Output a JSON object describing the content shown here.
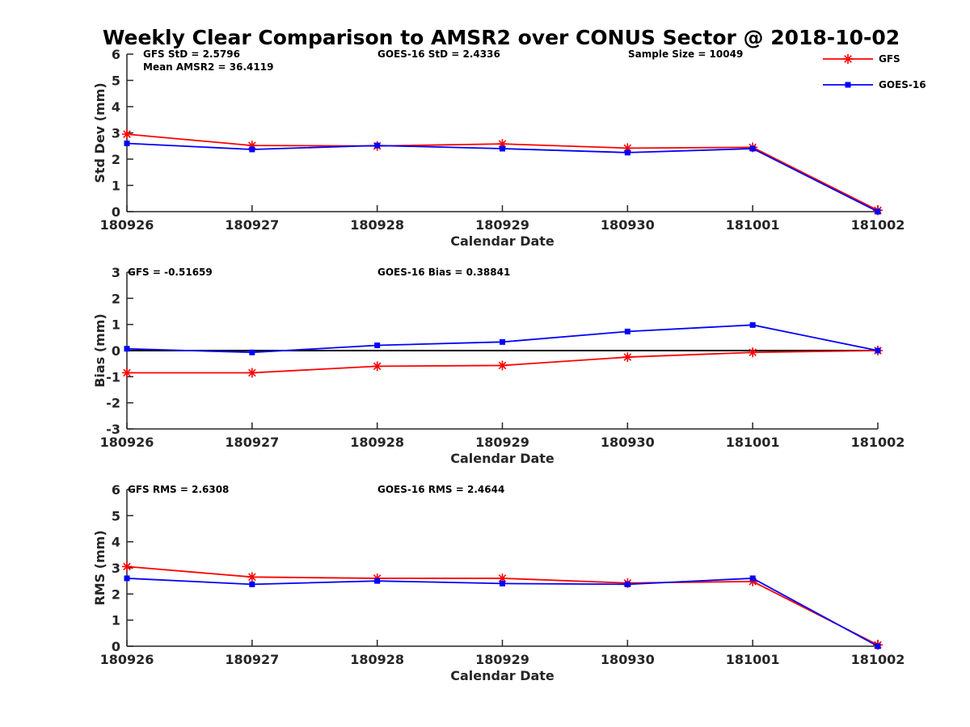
{
  "title": "Weekly Clear Comparison to AMSR2 over CONUS Sector @ 2018-10-02",
  "colors": {
    "GFS": "#ff0000",
    "GOES-16": "#0000ff",
    "zero_line": "#000000"
  },
  "legend": {
    "placement": "top-right",
    "entries": [
      {
        "name": "GFS",
        "marker": "asterisk"
      },
      {
        "name": "GOES-16",
        "marker": "square"
      }
    ]
  },
  "chart_data": [
    {
      "type": "line",
      "xlabel": "Calendar Date",
      "ylabel": "Std Dev (mm)",
      "categories": [
        "180926",
        "180927",
        "180928",
        "180929",
        "180930",
        "181001",
        "181002"
      ],
      "ylim": [
        0,
        6
      ],
      "yticks": [
        "0",
        "1",
        "2",
        "3",
        "4",
        "5",
        "6"
      ],
      "zero_line": false,
      "annotations": [
        {
          "text": "GFS StD = 2.5796"
        },
        {
          "text": "Mean AMSR2 = 36.4119"
        },
        {
          "text": "GOES-16 StD = 2.4336"
        },
        {
          "text": "Sample Size = 10049"
        }
      ],
      "series": [
        {
          "name": "GFS",
          "values": [
            2.95,
            2.52,
            2.5,
            2.58,
            2.42,
            2.45,
            0.05
          ]
        },
        {
          "name": "GOES-16",
          "values": [
            2.6,
            2.37,
            2.52,
            2.4,
            2.25,
            2.4,
            0.0
          ]
        }
      ]
    },
    {
      "type": "line",
      "xlabel": "Calendar Date",
      "ylabel": "Bias (mm)",
      "categories": [
        "180926",
        "180927",
        "180928",
        "180929",
        "180930",
        "181001",
        "181002"
      ],
      "ylim": [
        -3,
        3
      ],
      "yticks": [
        "-3",
        "-2",
        "-1",
        "0",
        "1",
        "2",
        "3"
      ],
      "zero_line": true,
      "annotations": [
        {
          "text": "GFS = -0.51659"
        },
        {
          "text": "GOES-16 Bias  = 0.38841"
        }
      ],
      "series": [
        {
          "name": "GFS",
          "values": [
            -0.85,
            -0.85,
            -0.6,
            -0.57,
            -0.25,
            -0.07,
            0.0
          ]
        },
        {
          "name": "GOES-16",
          "values": [
            0.07,
            -0.07,
            0.2,
            0.33,
            0.73,
            0.98,
            0.0
          ]
        }
      ]
    },
    {
      "type": "line",
      "xlabel": "Calendar Date",
      "ylabel": "RMS (mm)",
      "categories": [
        "180926",
        "180927",
        "180928",
        "180929",
        "180930",
        "181001",
        "181002"
      ],
      "ylim": [
        0,
        6
      ],
      "yticks": [
        "0",
        "1",
        "2",
        "3",
        "4",
        "5",
        "6"
      ],
      "zero_line": false,
      "annotations": [
        {
          "text": "GFS RMS = 2.6308"
        },
        {
          "text": "GOES-16 RMS = 2.4644"
        }
      ],
      "series": [
        {
          "name": "GFS",
          "values": [
            3.05,
            2.65,
            2.6,
            2.6,
            2.42,
            2.48,
            0.05
          ]
        },
        {
          "name": "GOES-16",
          "values": [
            2.6,
            2.37,
            2.5,
            2.4,
            2.37,
            2.6,
            0.0
          ]
        }
      ]
    }
  ]
}
